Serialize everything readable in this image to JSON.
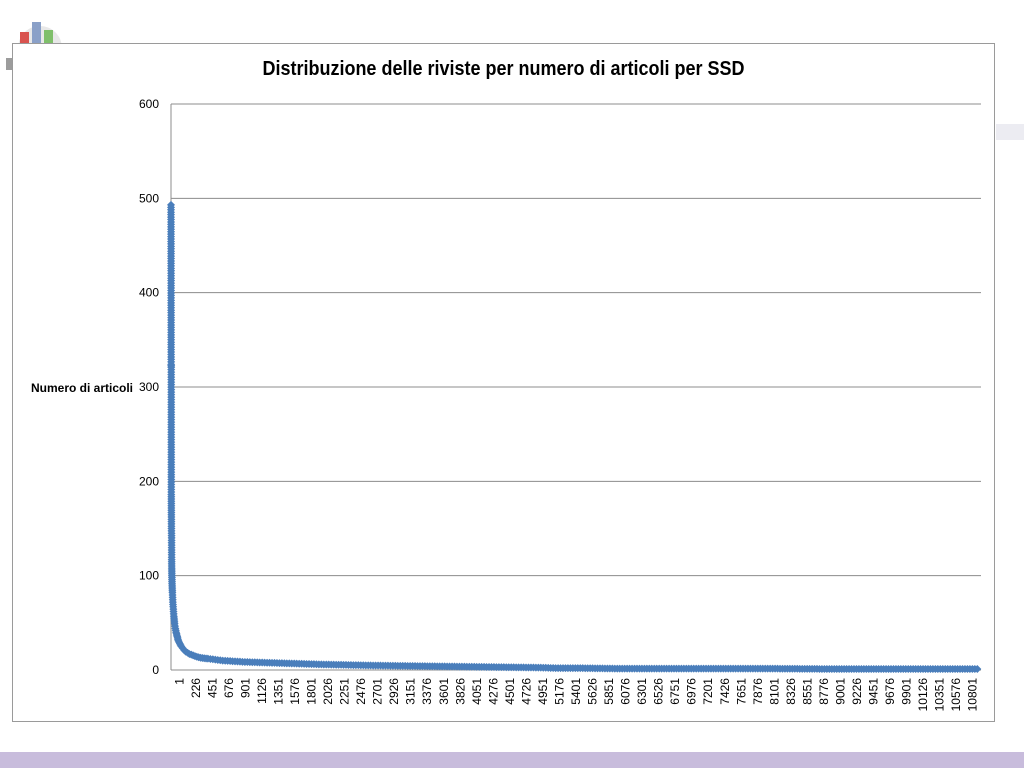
{
  "chart_data": {
    "type": "line",
    "title": "Distribuzione delle riviste per numero di articoli per SSD",
    "xlabel": "",
    "ylabel": "Numero di articoli",
    "ylim": [
      0,
      600
    ],
    "yticks": [
      "0",
      "100",
      "200",
      "300",
      "400",
      "500",
      "600"
    ],
    "xlim": [
      1,
      10950
    ],
    "categories": [
      "1",
      "226",
      "451",
      "676",
      "901",
      "1126",
      "1351",
      "1576",
      "1801",
      "2026",
      "2251",
      "2476",
      "2701",
      "2926",
      "3151",
      "3376",
      "3601",
      "3826",
      "4051",
      "4276",
      "4501",
      "4726",
      "4951",
      "5176",
      "5401",
      "5626",
      "5851",
      "6076",
      "6301",
      "6526",
      "6751",
      "6976",
      "7201",
      "7426",
      "7651",
      "7876",
      "8101",
      "8326",
      "8551",
      "8776",
      "9001",
      "9226",
      "9451",
      "9676",
      "9901",
      "10126",
      "10351",
      "10576",
      "10801"
    ],
    "grid": true,
    "legend": "none",
    "marker": "diamond",
    "series_color": "#4a7ebb",
    "series": [
      {
        "x": [
          1,
          2,
          3,
          4,
          5,
          6,
          7,
          8,
          9,
          10,
          11,
          12,
          13,
          14,
          15,
          17,
          20,
          23,
          26,
          30,
          35,
          40,
          45,
          50,
          60,
          70,
          80,
          90,
          100,
          120,
          140,
          160,
          180,
          200,
          250,
          300,
          350,
          400,
          450,
          500,
          600,
          700,
          800,
          900,
          1000,
          1200,
          1400,
          1600,
          1800,
          2000,
          2300,
          2600,
          3000,
          3500,
          4000,
          4500,
          5000,
          5200,
          5500,
          6000,
          7000,
          8000,
          9000,
          10000,
          10900
        ],
        "y": [
          493,
          431,
          324,
          321,
          186,
          167,
          150,
          145,
          140,
          117,
          108,
          104,
          100,
          96,
          92,
          88,
          82,
          77,
          72,
          67,
          62,
          57,
          53,
          49,
          44,
          40,
          37,
          34,
          31,
          28,
          25,
          23,
          21,
          19.5,
          17,
          15.5,
          14,
          13,
          12.5,
          12,
          11,
          10,
          9.5,
          9,
          8.5,
          8,
          7.5,
          7,
          6.5,
          6,
          5.5,
          5,
          4.5,
          4,
          3.5,
          3,
          2.5,
          2,
          2,
          1.5,
          1.5,
          1.5,
          1,
          1,
          1
        ]
      }
    ]
  }
}
